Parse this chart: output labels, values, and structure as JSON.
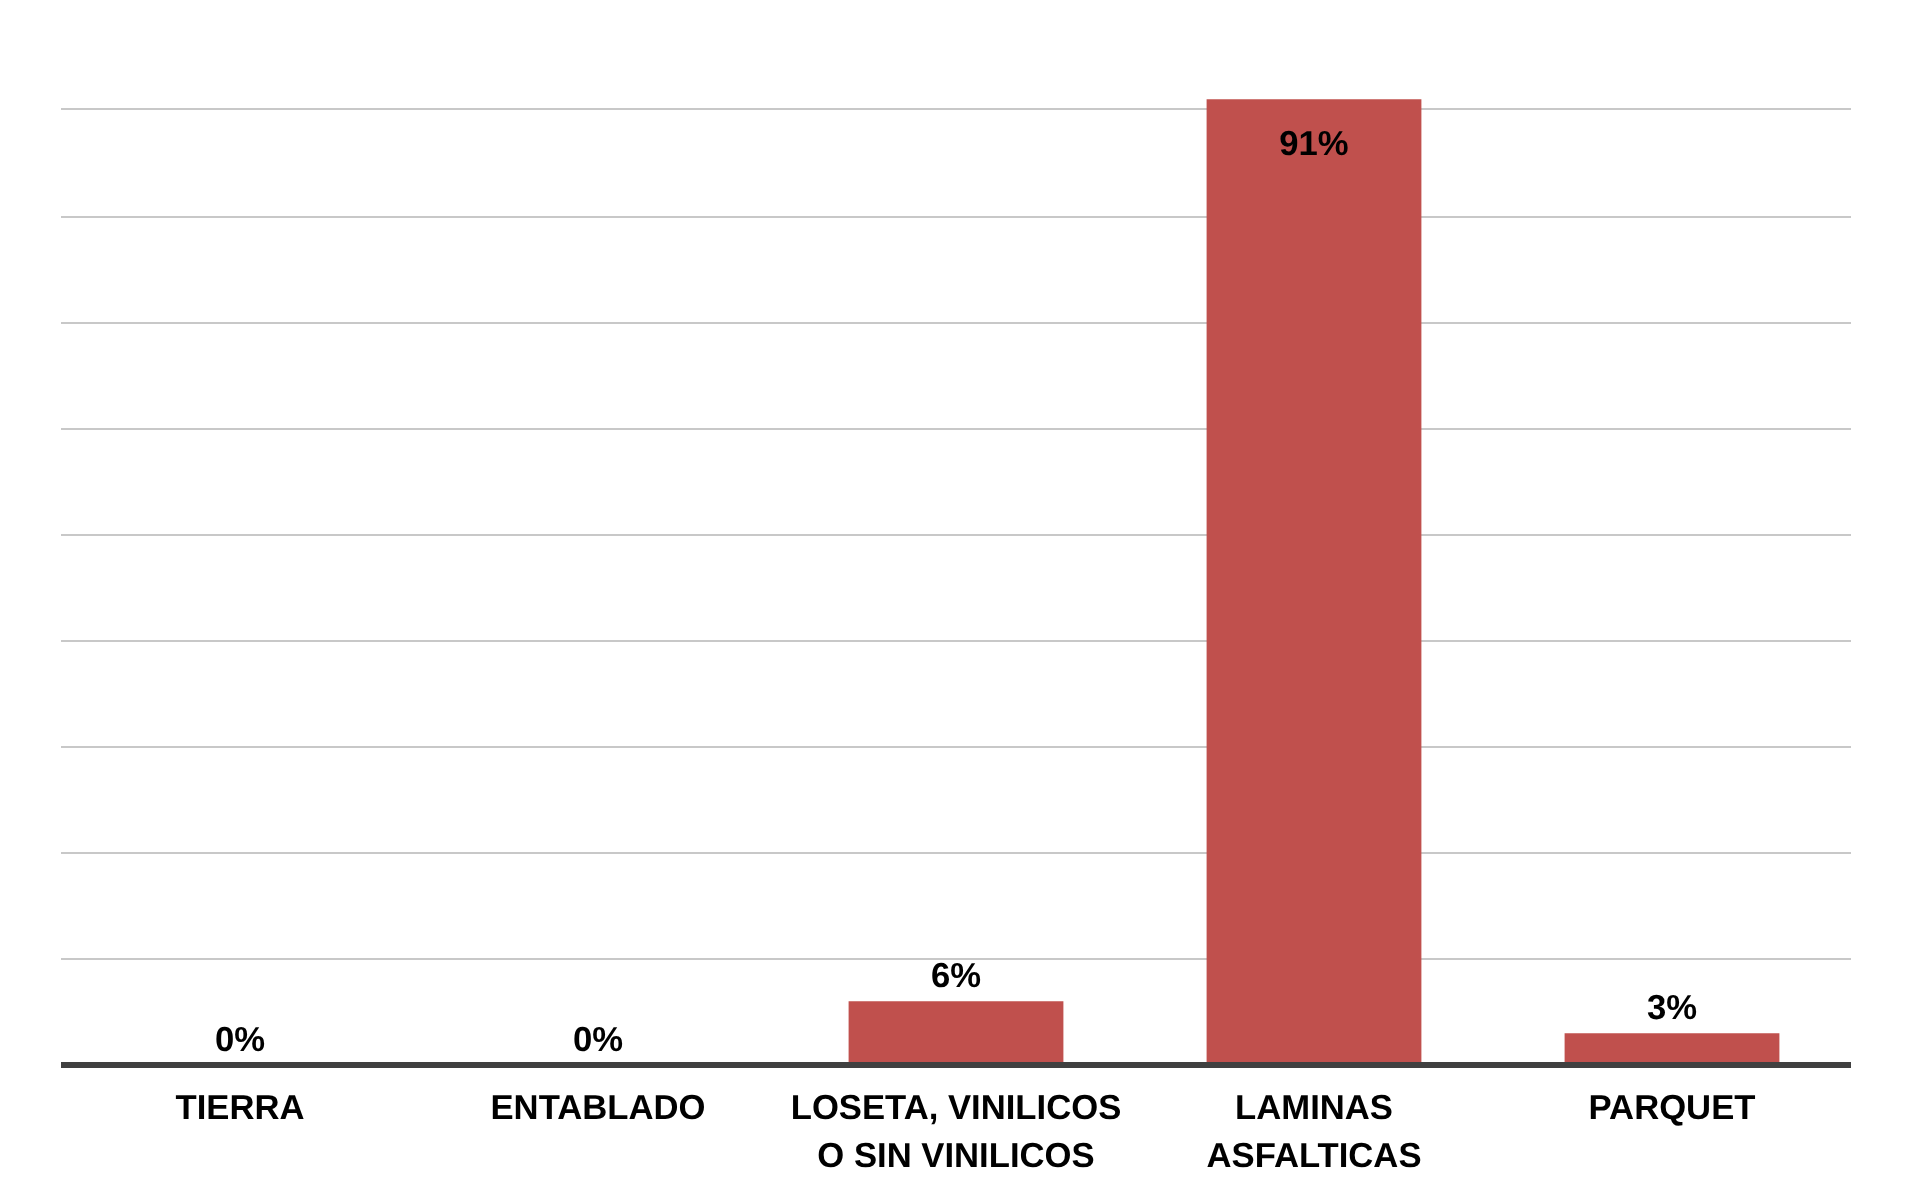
{
  "chart_data": {
    "type": "bar",
    "categories": [
      "TIERRA",
      "ENTABLADO",
      "LOSETA, VINILICOS\nO SIN VINILICOS",
      "LAMINAS\nASFALTICAS",
      "PARQUET"
    ],
    "values": [
      0,
      0,
      6,
      91,
      3
    ],
    "value_labels": [
      "0%",
      "0%",
      "6%",
      "91%",
      "3%"
    ],
    "color": "#c0504d",
    "grid": "y",
    "tick_labels": "x"
  }
}
